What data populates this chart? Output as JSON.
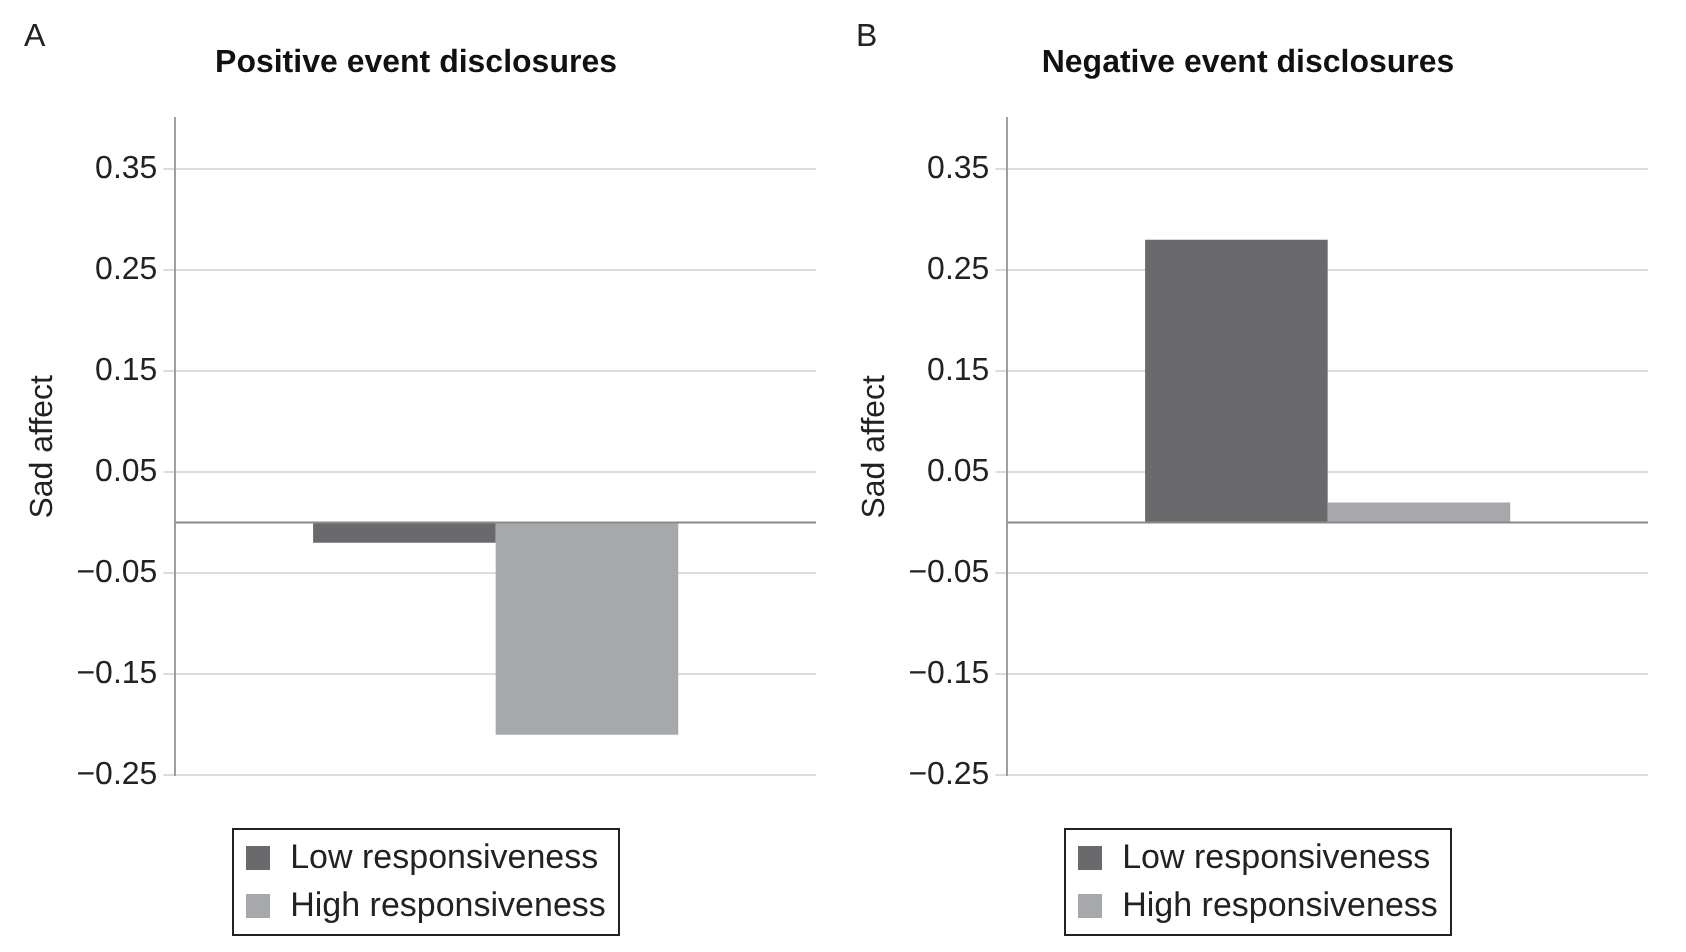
{
  "chart_data": [
    {
      "type": "bar",
      "title": "Positive event disclosures",
      "ylabel": "Sad affect",
      "annotations": [
        "A"
      ],
      "categories": [
        null
      ],
      "series": [
        {
          "name": "Low responsiveness",
          "color": "#6a6a6c",
          "values": [
            -0.02
          ]
        },
        {
          "name": "High responsiveness",
          "color": "#a7a8ab",
          "values": [
            -0.21
          ]
        }
      ],
      "ylim": [
        -0.25,
        0.4
      ],
      "yticks": [
        -0.25,
        -0.15,
        -0.05,
        0.05,
        0.15,
        0.25,
        0.35
      ],
      "grid": "y",
      "legend": "bottom",
      "ref_lines": [
        {
          "axis": "y",
          "value": 0,
          "color": "#8a8a8a"
        }
      ]
    },
    {
      "type": "bar",
      "title": "Negative event disclosures",
      "ylabel": "Sad affect",
      "annotations": [
        "B"
      ],
      "categories": [
        null
      ],
      "series": [
        {
          "name": "Low responsiveness",
          "color": "#6a6a6c",
          "values": [
            0.28
          ]
        },
        {
          "name": "High responsiveness",
          "color": "#a7a8ab",
          "values": [
            0.02
          ]
        }
      ],
      "ylim": [
        -0.25,
        0.4
      ],
      "yticks": [
        -0.25,
        -0.15,
        -0.05,
        0.05,
        0.15,
        0.25,
        0.35
      ],
      "grid": "y",
      "legend": "bottom",
      "ref_lines": [
        {
          "axis": "y",
          "value": 0,
          "color": "#8a8a8a"
        }
      ]
    }
  ]
}
